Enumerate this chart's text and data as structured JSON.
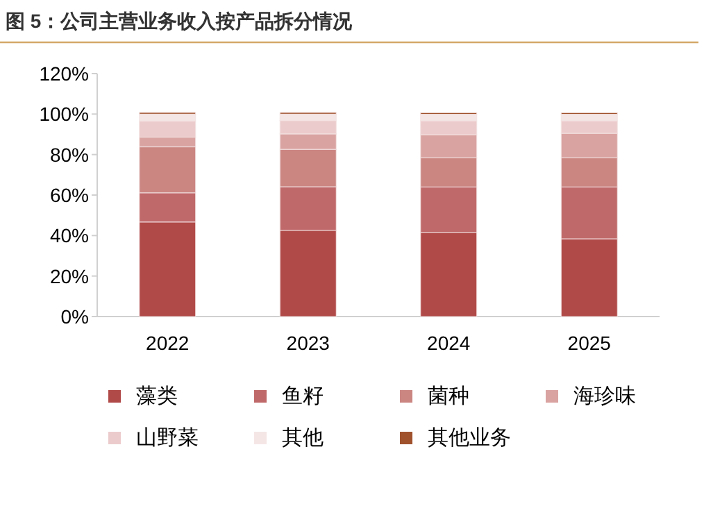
{
  "chart_data": {
    "type": "bar",
    "stacked": true,
    "title": "图 5：公司主营业务收入按产品拆分情况",
    "categories": [
      "2022",
      "2023",
      "2024",
      "2025"
    ],
    "series": [
      {
        "name": "藻类",
        "color": "#b04a48",
        "values": [
          46.7,
          42.6,
          41.6,
          38.4
        ]
      },
      {
        "name": "鱼籽",
        "color": "#c0696a",
        "values": [
          14.4,
          21.5,
          22.4,
          25.6
        ]
      },
      {
        "name": "菌种",
        "color": "#cb8682",
        "values": [
          22.7,
          18.5,
          14.4,
          14.4
        ]
      },
      {
        "name": "海珍味",
        "color": "#d9a3a1",
        "values": [
          4.8,
          7.6,
          11.4,
          12.1
        ]
      },
      {
        "name": "山野菜",
        "color": "#eccbcc",
        "values": [
          8.0,
          6.6,
          6.9,
          6.2
        ]
      },
      {
        "name": "其他",
        "color": "#f5e6e6",
        "values": [
          3.4,
          3.2,
          3.2,
          3.2
        ]
      },
      {
        "name": "其他业务",
        "color": "#a0522d",
        "values": [
          0.8,
          0.8,
          0.8,
          0.8
        ]
      }
    ],
    "ylim": [
      0,
      120
    ],
    "yticks": [
      {
        "value": 0,
        "label": "0%"
      },
      {
        "value": 20,
        "label": "20%"
      },
      {
        "value": 40,
        "label": "40%"
      },
      {
        "value": 60,
        "label": "60%"
      },
      {
        "value": 80,
        "label": "80%"
      },
      {
        "value": 100,
        "label": "100%"
      },
      {
        "value": 120,
        "label": "120%"
      }
    ],
    "grid": false,
    "legend": "bottom"
  }
}
